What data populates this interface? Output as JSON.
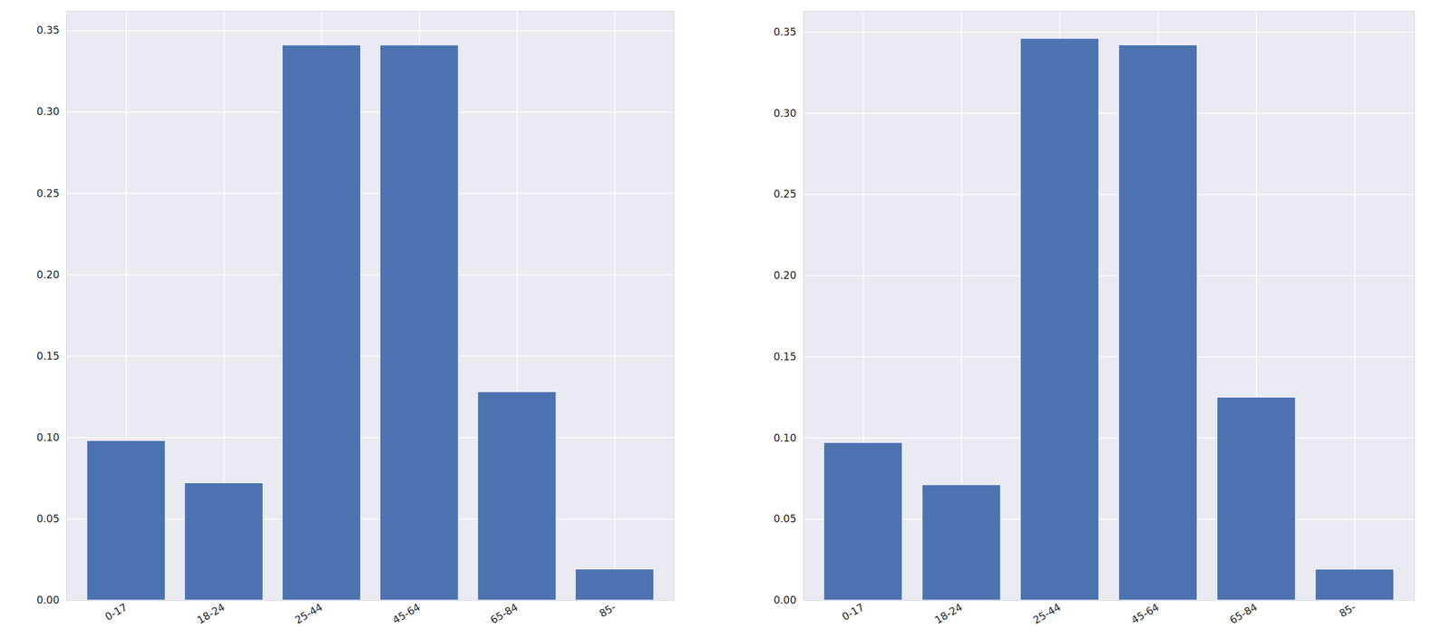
{
  "chart_data": [
    {
      "type": "bar",
      "categories": [
        "0-17",
        "18-24",
        "25-44",
        "45-64",
        "65-84",
        "85-"
      ],
      "values": [
        0.098,
        0.072,
        0.341,
        0.341,
        0.128,
        0.019
      ],
      "color": "#4c72b0",
      "ylim": [
        0,
        0.362
      ],
      "yticks": [
        {
          "value": 0,
          "label": "0.00"
        },
        {
          "value": 0.05,
          "label": "0.05"
        },
        {
          "value": 0.1,
          "label": "0.10"
        },
        {
          "value": 0.15,
          "label": "0.15"
        },
        {
          "value": 0.2,
          "label": "0.20"
        },
        {
          "value": 0.25,
          "label": "0.25"
        },
        {
          "value": 0.3,
          "label": "0.30"
        },
        {
          "value": 0.35,
          "label": "0.35"
        }
      ],
      "grid": true
    },
    {
      "type": "bar",
      "categories": [
        "0-17",
        "18-24",
        "25-44",
        "45-64",
        "65-84",
        "85-"
      ],
      "values": [
        0.097,
        0.071,
        0.346,
        0.342,
        0.125,
        0.019
      ],
      "color": "#4c72b0",
      "ylim": [
        0,
        0.363
      ],
      "yticks": [
        {
          "value": 0,
          "label": "0.00"
        },
        {
          "value": 0.05,
          "label": "0.05"
        },
        {
          "value": 0.1,
          "label": "0.10"
        },
        {
          "value": 0.15,
          "label": "0.15"
        },
        {
          "value": 0.2,
          "label": "0.20"
        },
        {
          "value": 0.25,
          "label": "0.25"
        },
        {
          "value": 0.3,
          "label": "0.30"
        },
        {
          "value": 0.35,
          "label": "0.35"
        }
      ],
      "grid": true
    }
  ]
}
